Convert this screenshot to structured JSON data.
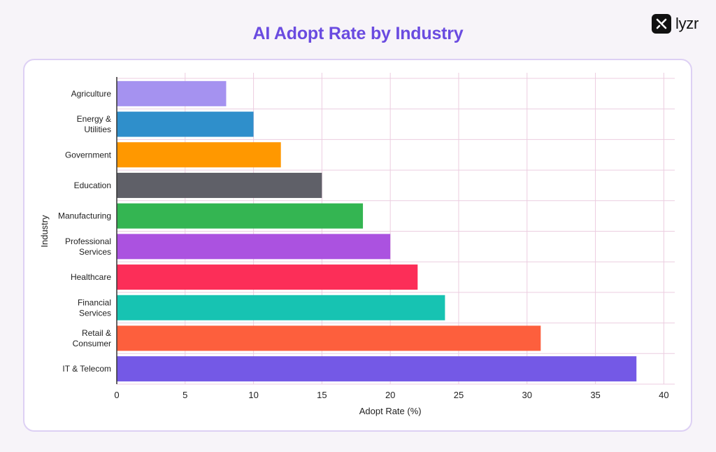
{
  "header": {
    "title": "AI Adopt Rate by Industry",
    "brand": "lyzr"
  },
  "chart_data": {
    "type": "bar",
    "orientation": "horizontal",
    "title": "AI Adopt Rate by Industry",
    "xlabel": "Adopt Rate (%)",
    "ylabel": "Industry",
    "xlim": [
      0,
      40
    ],
    "xticks": [
      0,
      5,
      10,
      15,
      20,
      25,
      30,
      35,
      40
    ],
    "grid": true,
    "categories": [
      [
        "Agriculture"
      ],
      [
        "Energy &",
        "Utilities"
      ],
      [
        "Government"
      ],
      [
        "Education"
      ],
      [
        "Manufacturing"
      ],
      [
        "Professional",
        "Services"
      ],
      [
        "Healthcare"
      ],
      [
        "Financial",
        "Services"
      ],
      [
        "Retail &",
        "Consumer"
      ],
      [
        "IT & Telecom"
      ]
    ],
    "values": [
      8,
      10,
      12,
      15,
      18,
      20,
      22,
      24,
      31,
      38
    ],
    "colors": [
      "#a592f0",
      "#2f8fcb",
      "#ff9800",
      "#5f6068",
      "#34b552",
      "#ab52e0",
      "#fc2e58",
      "#17c3b2",
      "#fd5f3d",
      "#7459e6"
    ],
    "grid_color": "#eccde0"
  }
}
